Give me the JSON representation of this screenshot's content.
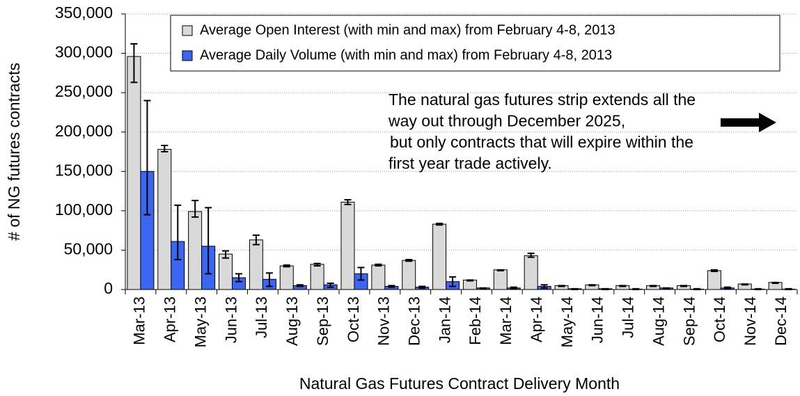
{
  "chart_data": {
    "type": "bar",
    "y_label": "# of NG futures contracts",
    "x_label": "Natural Gas Futures Contract Delivery Month",
    "categories": [
      "Mar-13",
      "Apr-13",
      "May-13",
      "Jun-13",
      "Jul-13",
      "Aug-13",
      "Sep-13",
      "Oct-13",
      "Nov-13",
      "Dec-13",
      "Jan-14",
      "Feb-14",
      "Mar-14",
      "Apr-14",
      "May-14",
      "Jun-14",
      "Jul-14",
      "Aug-14",
      "Sep-14",
      "Oct-14",
      "Nov-14",
      "Dec-14"
    ],
    "series": [
      {
        "name": "Average Open Interest (with min and max) from February 4-8, 2013",
        "color": "#d9d9d9",
        "values": [
          296000,
          178000,
          99000,
          45000,
          63000,
          30000,
          32000,
          111000,
          31000,
          37000,
          83000,
          12000,
          25000,
          43000,
          5000,
          6000,
          5000,
          5000,
          5000,
          24000,
          7000,
          9000
        ],
        "min": [
          263000,
          175000,
          92000,
          40000,
          57000,
          29000,
          30000,
          108000,
          30000,
          36000,
          82000,
          11000,
          24000,
          41000,
          4000,
          5000,
          4000,
          4000,
          4000,
          23000,
          6000,
          8000
        ],
        "max": [
          312000,
          183000,
          113000,
          49000,
          69000,
          31000,
          33000,
          114000,
          32000,
          38000,
          84000,
          12000,
          25000,
          46000,
          5000,
          6000,
          5000,
          5000,
          5000,
          25000,
          7000,
          9000
        ]
      },
      {
        "name": "Average Daily Volume (with min and max) from February 4-8, 2013",
        "color": "#3a66f2",
        "values": [
          150000,
          61000,
          55000,
          15000,
          13000,
          5000,
          6000,
          20000,
          4000,
          3000,
          10000,
          2000,
          2000,
          4000,
          1000,
          1000,
          500,
          2000,
          500,
          2000,
          500,
          500
        ],
        "min": [
          95000,
          38000,
          20000,
          10000,
          4000,
          4000,
          3000,
          12000,
          3000,
          2000,
          4000,
          1000,
          1000,
          2000,
          0,
          0,
          0,
          1000,
          0,
          1000,
          0,
          0
        ],
        "max": [
          240000,
          107000,
          104000,
          20000,
          21000,
          6000,
          8000,
          28000,
          5000,
          4000,
          16000,
          2000,
          3000,
          6000,
          1000,
          1000,
          1000,
          2000,
          1000,
          3000,
          1000,
          1000
        ]
      }
    ],
    "ylim": [
      0,
      350000
    ],
    "yticks": [
      0,
      {
        "value": 50000,
        "label": "50,000"
      },
      {
        "value": 100000,
        "label": "100,000"
      },
      {
        "value": 150000,
        "label": "150,000"
      },
      {
        "value": 200000,
        "label": "200,000"
      },
      {
        "value": 250000,
        "label": "250,000"
      },
      {
        "value": 300000,
        "label": "300,000"
      },
      {
        "value": 350000,
        "label": "350,000"
      }
    ],
    "grid": true,
    "legend": "top",
    "annotation": [
      "The natural gas futures strip extends all the",
      "way out through December 2025,",
      "but only contracts that will expire within the",
      "first year trade actively."
    ]
  }
}
